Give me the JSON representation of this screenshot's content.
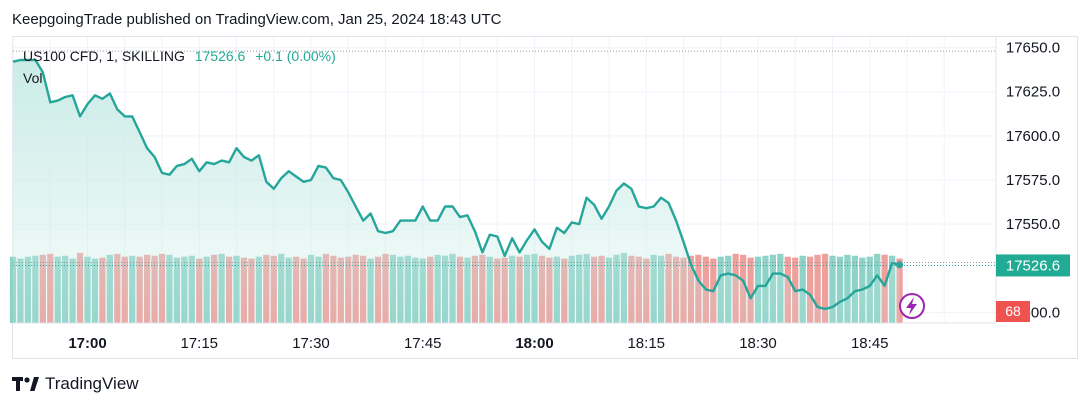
{
  "header": {
    "text": "KeepgoingTrade published on TradingView.com, Jan 25, 2024 18:43 UTC"
  },
  "legend": {
    "symbol": "US100 CFD, 1, SKILLING",
    "last": "17526.6",
    "change": "+0.1 (0.00%)",
    "volume_label": "Vol"
  },
  "footer": {
    "brand": "TradingView",
    "logo_icon": "tradingview-logo-icon"
  },
  "colors": {
    "line": "#26a69a",
    "area_top": "#c8ebe6",
    "up_bar": "#8fd3c8",
    "down_bar": "#eea09d",
    "price_badge": "#22ab94",
    "volume_badge": "#ef5350",
    "lightning": "#9c27b0"
  },
  "chart_data": {
    "type": "area",
    "x_labels": [
      "17:00",
      "17:15",
      "17:30",
      "17:45",
      "18:00",
      "18:15",
      "18:30",
      "18:45"
    ],
    "bold_x_labels": [
      "17:00",
      "18:00"
    ],
    "y_ticks": [
      "17650.0",
      "17625.0",
      "17600.0",
      "17575.0",
      "17550.0",
      "17526.6",
      "17500.0"
    ],
    "ylim": [
      17494,
      17656
    ],
    "time_start": "16:50",
    "interval_minutes": 1,
    "last_price": "17526.6",
    "last_volume": "68",
    "price": [
      17642,
      17643,
      17643,
      17643,
      17636,
      17619,
      17620,
      17622,
      17623,
      17611,
      17618,
      17623,
      17621,
      17624,
      17615,
      17611,
      17611,
      17602,
      17593,
      17588,
      17579,
      17578,
      17583,
      17584,
      17587,
      17580,
      17585,
      17584,
      17586,
      17585,
      17593,
      17588,
      17586,
      17589,
      17574,
      17570,
      17576,
      17580,
      17577,
      17574,
      17575,
      17583,
      17582,
      17576,
      17575,
      17568,
      17560,
      17552,
      17556,
      17546,
      17545,
      17546,
      17552,
      17552,
      17552,
      17560,
      17552,
      17552,
      17560,
      17560,
      17554,
      17555,
      17546,
      17534,
      17544,
      17543,
      17532,
      17542,
      17534,
      17541,
      17547,
      17540,
      17536,
      17548,
      17545,
      17551,
      17550,
      17565,
      17561,
      17553,
      17560,
      17569,
      17573,
      17570,
      17560,
      17559,
      17560,
      17565,
      17562,
      17552,
      17540,
      17527,
      17518,
      17513,
      17512,
      17521,
      17522,
      17521,
      17518,
      17508,
      17515,
      17515,
      17522,
      17522,
      17520,
      17512,
      17513,
      17510,
      17503,
      17502,
      17503,
      17506,
      17508,
      17512,
      17513,
      17515,
      17521,
      17515,
      17528,
      17527
    ],
    "volume": [
      70,
      68,
      70,
      71,
      72,
      73,
      70,
      71,
      68,
      74,
      70,
      68,
      69,
      72,
      73,
      70,
      71,
      70,
      72,
      71,
      73,
      72,
      69,
      70,
      71,
      68,
      70,
      72,
      73,
      70,
      71,
      69,
      68,
      70,
      72,
      71,
      73,
      69,
      70,
      68,
      72,
      70,
      73,
      71,
      69,
      70,
      72,
      71,
      68,
      70,
      73,
      72,
      70,
      71,
      69,
      68,
      70,
      72,
      71,
      73,
      70,
      69,
      71,
      72,
      70,
      68,
      69,
      71,
      70,
      72,
      73,
      71,
      69,
      70,
      68,
      71,
      72,
      73,
      70,
      71,
      69,
      72,
      74,
      71,
      70,
      68,
      72,
      71,
      73,
      70,
      69,
      71,
      72,
      70,
      68,
      70,
      71,
      73,
      72,
      69,
      70,
      71,
      72,
      73,
      70,
      69,
      71,
      70,
      72,
      73,
      71,
      70,
      72,
      71,
      69,
      70,
      73,
      72,
      71,
      68
    ],
    "volume_up": [
      1,
      1,
      1,
      1,
      0,
      0,
      1,
      1,
      1,
      0,
      1,
      1,
      0,
      1,
      0,
      0,
      1,
      0,
      0,
      0,
      0,
      1,
      1,
      1,
      1,
      0,
      1,
      0,
      1,
      0,
      1,
      0,
      0,
      1,
      0,
      0,
      1,
      1,
      0,
      0,
      1,
      1,
      0,
      0,
      0,
      0,
      0,
      0,
      1,
      0,
      0,
      1,
      1,
      1,
      1,
      1,
      0,
      1,
      1,
      1,
      0,
      1,
      0,
      0,
      1,
      0,
      0,
      1,
      0,
      1,
      1,
      0,
      0,
      1,
      0,
      1,
      1,
      1,
      0,
      0,
      1,
      1,
      1,
      0,
      0,
      0,
      1,
      1,
      0,
      0,
      0,
      0,
      0,
      0,
      0,
      1,
      1,
      0,
      0,
      0,
      1,
      1,
      1,
      1,
      0,
      0,
      1,
      0,
      0,
      0,
      1,
      1,
      1,
      1,
      1,
      1,
      1,
      0,
      1,
      0
    ]
  }
}
